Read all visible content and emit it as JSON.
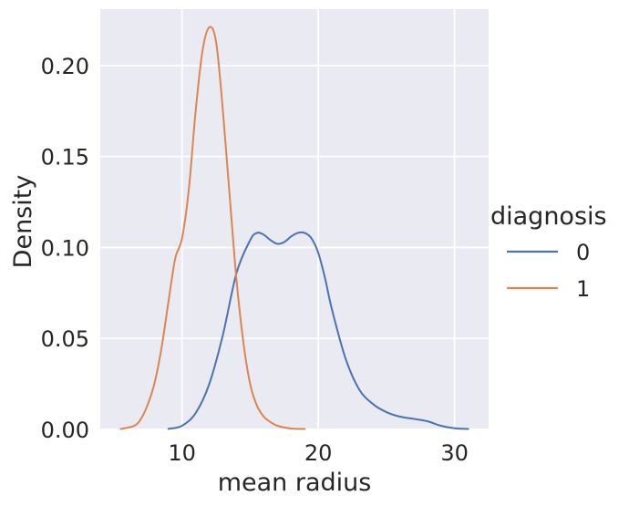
{
  "chart_data": {
    "type": "line",
    "xlabel": "mean radius",
    "ylabel": "Density",
    "xlim": [
      4.0,
      32.5
    ],
    "ylim": [
      0.0,
      0.231
    ],
    "x_ticks": [
      10,
      20,
      30
    ],
    "x_tick_labels": [
      "10",
      "20",
      "30"
    ],
    "y_ticks": [
      0.0,
      0.05,
      0.1,
      0.15,
      0.2
    ],
    "y_tick_labels": [
      "0.00",
      "0.05",
      "0.10",
      "0.15",
      "0.20"
    ],
    "grid": true,
    "legend": {
      "title": "diagnosis",
      "placement": "right"
    },
    "series": [
      {
        "name": "0",
        "color": "#4C72B0",
        "x": [
          9.0,
          10.0,
          11.0,
          12.0,
          13.0,
          14.0,
          15.0,
          15.5,
          16.0,
          16.5,
          17.0,
          17.5,
          18.0,
          18.5,
          19.0,
          19.5,
          20.0,
          20.5,
          21.0,
          22.0,
          23.0,
          24.0,
          25.0,
          26.0,
          27.0,
          28.0,
          29.0,
          30.0,
          31.0
        ],
        "y": [
          0.0003,
          0.002,
          0.009,
          0.025,
          0.052,
          0.086,
          0.104,
          0.108,
          0.107,
          0.104,
          0.102,
          0.103,
          0.106,
          0.108,
          0.108,
          0.105,
          0.097,
          0.083,
          0.066,
          0.039,
          0.022,
          0.014,
          0.0095,
          0.007,
          0.0058,
          0.0045,
          0.002,
          0.0006,
          0.0001
        ]
      },
      {
        "name": "1",
        "color": "#DD8452",
        "x": [
          5.5,
          6.5,
          7.0,
          7.5,
          8.0,
          8.5,
          9.0,
          9.5,
          10.0,
          10.5,
          11.0,
          11.5,
          12.0,
          12.5,
          13.0,
          13.5,
          14.0,
          14.5,
          15.0,
          15.5,
          16.0,
          16.5,
          17.0,
          18.0,
          19.0
        ],
        "y": [
          0.0002,
          0.002,
          0.006,
          0.014,
          0.026,
          0.045,
          0.07,
          0.094,
          0.105,
          0.132,
          0.175,
          0.208,
          0.221,
          0.213,
          0.175,
          0.128,
          0.082,
          0.048,
          0.025,
          0.013,
          0.007,
          0.004,
          0.002,
          0.0005,
          0.0001
        ]
      }
    ]
  }
}
